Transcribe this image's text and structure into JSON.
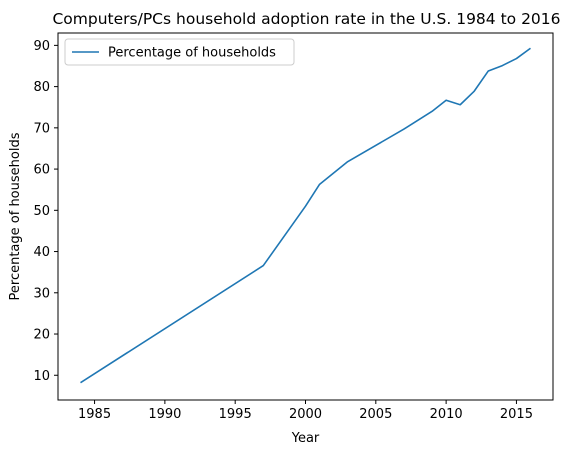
{
  "chart_data": {
    "type": "line",
    "title": "Computers/PCs household adoption rate in the U.S. 1984 to 2016",
    "xlabel": "Year",
    "ylabel": "Percentage of households",
    "xlim": [
      1982.4,
      2017.6
    ],
    "ylim": [
      4.0,
      93.0
    ],
    "xticks": [
      1985,
      1990,
      1995,
      2000,
      2005,
      2010,
      2015
    ],
    "yticks": [
      10,
      20,
      30,
      40,
      50,
      60,
      70,
      80,
      90
    ],
    "grid": false,
    "legend_position": "upper-left",
    "series": [
      {
        "name": "Percentage of households",
        "color": "#1f77b4",
        "x": [
          1984,
          1997,
          2000,
          2001,
          2003,
          2007,
          2009,
          2010,
          2011,
          2012,
          2013,
          2014,
          2015,
          2016
        ],
        "y": [
          8.2,
          36.6,
          51.0,
          56.3,
          61.8,
          69.7,
          74.0,
          76.7,
          75.6,
          78.9,
          83.8,
          85.1,
          86.8,
          89.3
        ]
      }
    ]
  }
}
